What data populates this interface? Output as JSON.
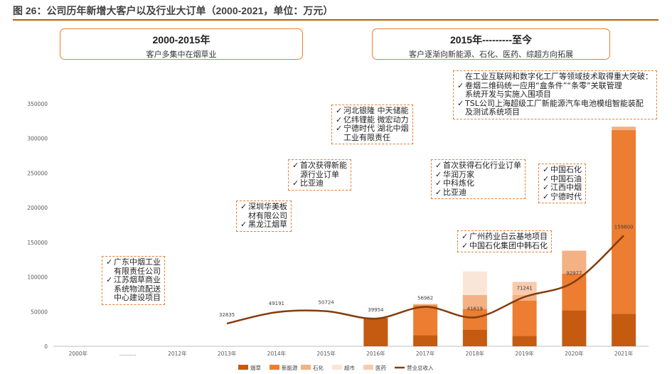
{
  "title": "图 26：公司历年新增大客户以及行业大订单（2000-2021，单位：万元）",
  "header_left": {
    "title": "2000-2015年",
    "subtitle": "客户多集中在烟草业"
  },
  "header_right": {
    "title": "2015年---------至今",
    "subtitle": "客户逐渐向新能源、石化、医药、综超方向拓展"
  },
  "annotations": [
    {
      "id": "a2000",
      "lines": [
        {
          "c": true,
          "t": "广东中烟工业"
        },
        {
          "c": false,
          "t": "有限责任公司"
        },
        {
          "c": true,
          "t": "江苏烟草商业"
        },
        {
          "c": false,
          "t": "系统物流配送"
        },
        {
          "c": false,
          "t": "中心建设项目"
        }
      ]
    },
    {
      "id": "a2014",
      "lines": [
        {
          "c": true,
          "t": "深圳华美板"
        },
        {
          "c": false,
          "t": "材有限公司"
        },
        {
          "c": true,
          "t": "黑龙江烟草"
        }
      ]
    },
    {
      "id": "a2015",
      "lines": [
        {
          "c": true,
          "t": "首次获得新能"
        },
        {
          "c": false,
          "t": "源行业订单"
        },
        {
          "c": true,
          "t": "比亚迪"
        }
      ]
    },
    {
      "id": "a2016",
      "lines": [
        {
          "c": true,
          "t": "河北银隆 中天储能"
        },
        {
          "c": true,
          "t": "亿纬锂能 微宏动力"
        },
        {
          "c": true,
          "t": "宁德时代 湖北中烟"
        },
        {
          "c": false,
          "t": "工业有限责任"
        }
      ]
    },
    {
      "id": "a2017",
      "lines": [
        {
          "c": true,
          "t": "首次获得石化行业订单"
        },
        {
          "c": true,
          "t": "华润万家"
        },
        {
          "c": true,
          "t": "中科炼化"
        },
        {
          "c": true,
          "t": "比亚迪"
        }
      ]
    },
    {
      "id": "a2018",
      "lines": [
        {
          "c": true,
          "t": "广州药业白云基地项目"
        },
        {
          "c": true,
          "t": "中国石化集团中韩石化"
        }
      ]
    },
    {
      "id": "a2020",
      "lines": [
        {
          "c": true,
          "t": "中国石化"
        },
        {
          "c": true,
          "t": "中国石油"
        },
        {
          "c": true,
          "t": "江西中烟"
        },
        {
          "c": true,
          "t": "宁德时代"
        }
      ]
    },
    {
      "id": "a2021",
      "lines": [
        {
          "c": false,
          "t": "在工业互联网和数字化工厂等领域技术取得重大突破："
        },
        {
          "c": true,
          "t": "卷烟二维码统一应用“盒条件”“条零”关联管理"
        },
        {
          "c": false,
          "t": "系统开发与实施入围项目"
        },
        {
          "c": true,
          "t": "TSL公司上海超级工厂新能源汽车电池模组智能装配"
        },
        {
          "c": false,
          "t": "及测试系统项目"
        }
      ]
    }
  ],
  "check_symbol": "✓",
  "colors": {
    "烟草": "#c55a11",
    "新能源": "#ed7d31",
    "石化": "#f4b183",
    "超市": "#fbe5d6",
    "医药": "#f8cbad",
    "营业总收入": "#843c0c",
    "accent": "#ed7d31",
    "rule": "#c55a11"
  },
  "chart_data": {
    "type": "bar",
    "categories": [
      "2000年",
      "..........",
      "2012年",
      "2013年",
      "2014年",
      "2015年",
      "2016年",
      "2017年",
      "2018年",
      "2019年",
      "2020年",
      "2021年"
    ],
    "ylim": [
      0,
      350000
    ],
    "yticks": [
      0,
      50000,
      100000,
      150000,
      200000,
      250000,
      300000,
      350000
    ],
    "stacked": true,
    "series": [
      {
        "name": "烟草",
        "values": [
          null,
          null,
          null,
          null,
          null,
          null,
          41000,
          16000,
          24000,
          15000,
          52000,
          47000
        ]
      },
      {
        "name": "新能源",
        "values": [
          null,
          null,
          null,
          null,
          null,
          null,
          0,
          43000,
          30000,
          51000,
          53000,
          265000
        ]
      },
      {
        "name": "石化",
        "values": [
          null,
          null,
          null,
          null,
          null,
          null,
          0,
          2000,
          20000,
          8000,
          33000,
          5000
        ]
      },
      {
        "name": "超市",
        "values": [
          null,
          null,
          null,
          null,
          null,
          null,
          0,
          0,
          34000,
          0,
          0,
          0
        ]
      },
      {
        "name": "医药",
        "values": [
          null,
          null,
          null,
          null,
          null,
          null,
          0,
          0,
          0,
          19000,
          0,
          0
        ]
      }
    ],
    "line_series": {
      "name": "营业总收入",
      "values": [
        null,
        null,
        null,
        32835,
        49191,
        50724,
        39954,
        56962,
        41619,
        71241,
        92977,
        159800
      ],
      "labels": [
        "",
        "",
        "",
        "32835",
        "49191",
        "50724",
        "39954",
        "56962",
        "41619",
        "71241",
        "92977",
        "159800"
      ]
    },
    "legend": [
      "烟草",
      "新能源",
      "石化",
      "超市",
      "医药",
      "营业总收入"
    ],
    "legend_position": "bottom"
  }
}
